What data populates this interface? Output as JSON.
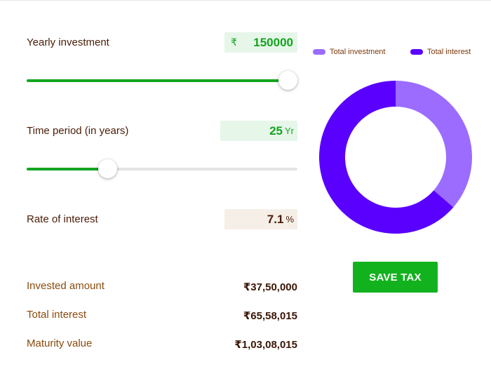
{
  "inputs": {
    "yearly": {
      "label": "Yearly investment",
      "currency": "₹",
      "value": "150000",
      "slider_fraction": 1.0
    },
    "period": {
      "label": "Time period (in years)",
      "value": "25",
      "unit": "Yr",
      "slider_fraction": 0.3
    },
    "rate": {
      "label": "Rate of interest",
      "value": "7.1",
      "unit": "%"
    }
  },
  "summary": {
    "invested": {
      "label": "Invested amount",
      "value": "₹37,50,000"
    },
    "interest": {
      "label": "Total interest",
      "value": "₹65,58,015"
    },
    "maturity": {
      "label": "Maturity value",
      "value": "₹1,03,08,015"
    }
  },
  "chart_data": {
    "type": "pie",
    "donut": true,
    "categories": [
      "Total investment",
      "Total interest"
    ],
    "values": [
      3750000,
      6558015
    ],
    "colors": [
      "#9b6cff",
      "#5a00ff"
    ],
    "legend_position": "top"
  },
  "legend": {
    "investment": "Total investment",
    "interest": "Total interest"
  },
  "save_tax": {
    "label": "SAVE TAX"
  },
  "colors": {
    "accent_green": "#13a521",
    "investment": "#9b6cff",
    "interest": "#5a00ff",
    "text_brown": "#4a1c06"
  }
}
